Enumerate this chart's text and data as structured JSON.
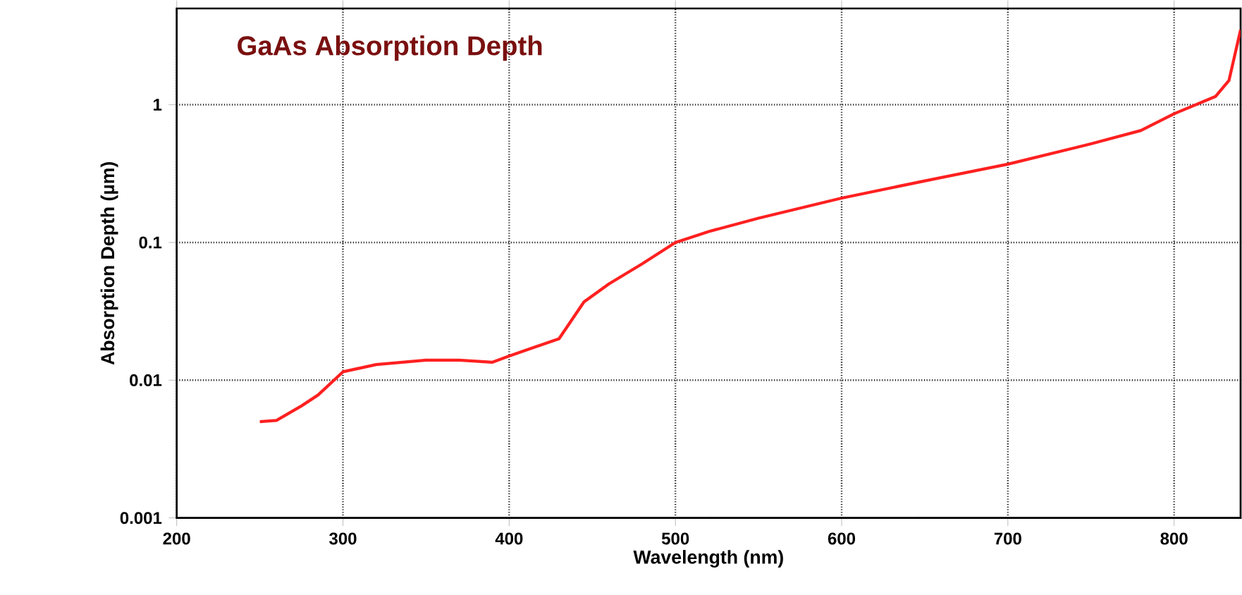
{
  "chart_data": {
    "type": "line",
    "title": "GaAs Absorption Depth",
    "xlabel": "Wavelength (nm)",
    "ylabel": "Absorption Depth (µm)",
    "log": "y",
    "grid": true,
    "marker": "none",
    "line_style": "solid",
    "xlim": [
      200,
      840
    ],
    "ylim": [
      0.001,
      5
    ],
    "xticks": [
      200,
      300,
      400,
      500,
      600,
      700,
      800
    ],
    "yticks": [
      0.001,
      0.01,
      0.1,
      1
    ],
    "x": [
      250,
      260,
      275,
      285,
      300,
      320,
      350,
      370,
      390,
      400,
      430,
      445,
      460,
      480,
      500,
      520,
      550,
      600,
      650,
      700,
      750,
      780,
      800,
      825,
      833,
      840
    ],
    "series": [
      {
        "color": "#ff2020",
        "values": [
          0.005,
          0.0051,
          0.0065,
          0.0078,
          0.0115,
          0.013,
          0.014,
          0.014,
          0.0135,
          0.015,
          0.02,
          0.037,
          0.05,
          0.07,
          0.1,
          0.12,
          0.15,
          0.21,
          0.28,
          0.37,
          0.52,
          0.65,
          0.86,
          1.15,
          1.5,
          3.5
        ]
      }
    ]
  }
}
